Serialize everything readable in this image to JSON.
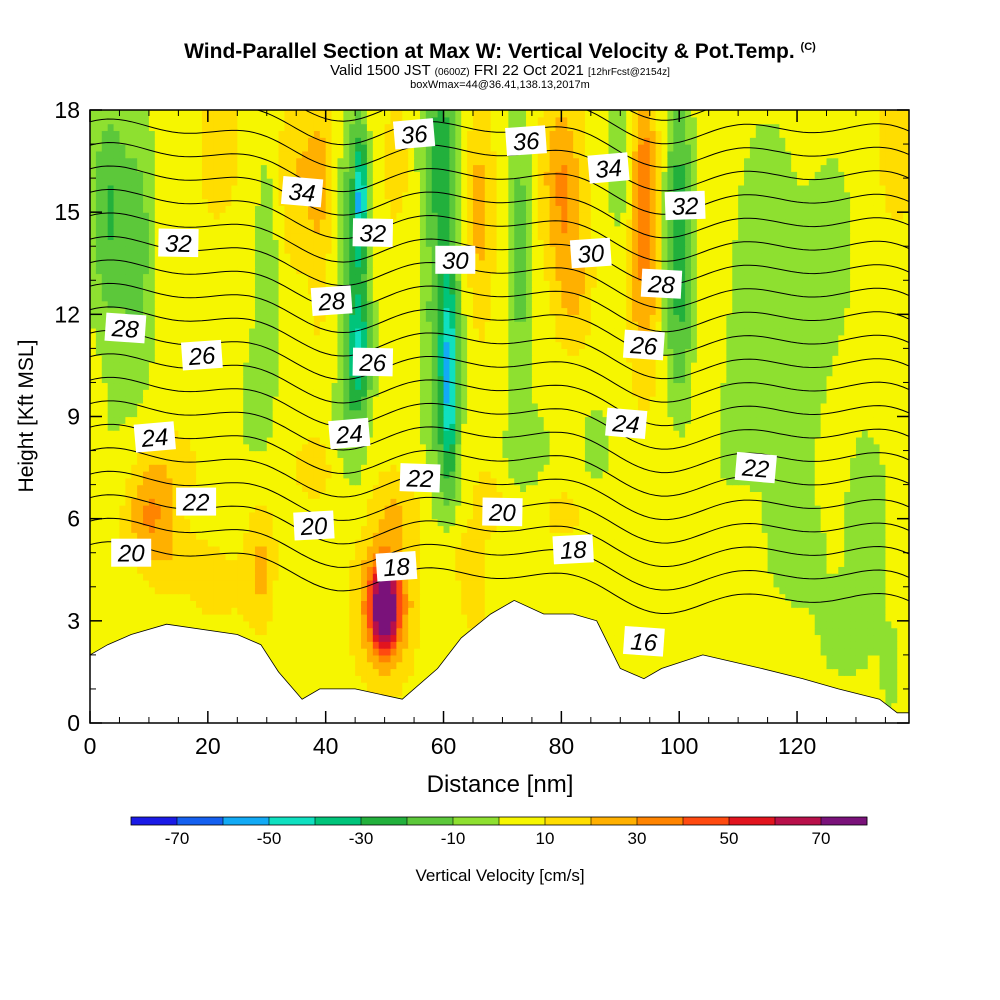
{
  "header": {
    "title": "Wind-Parallel Section at Max W: Vertical Velocity & Pot.Temp.",
    "copyright": "(C)",
    "valid_prefix": "Valid 1500 JST",
    "valid_utc": "(0600Z)",
    "valid_date": "FRI 22 Oct 2021",
    "forecast": "[12hrFcst@2154z]",
    "box_info": "boxWmax=44@36.41,138.13,2017m"
  },
  "chart_data": {
    "type": "heatmap",
    "xlabel": "Distance [nm]",
    "ylabel": "Height [Kft MSL]",
    "xlim": [
      0,
      139
    ],
    "ylim": [
      0,
      18
    ],
    "x_ticks": [
      0,
      20,
      40,
      60,
      80,
      100,
      120
    ],
    "y_ticks": [
      0,
      3,
      6,
      9,
      12,
      15,
      18
    ],
    "colorbar": {
      "label": "Vertical Velocity [cm/s]",
      "tick_labels": [
        "-70",
        "-50",
        "-30",
        "-10",
        "10",
        "30",
        "50",
        "70"
      ],
      "bins": [
        -80,
        -70,
        -60,
        -50,
        -40,
        -30,
        -20,
        -10,
        0,
        10,
        20,
        30,
        40,
        50,
        60,
        70,
        80
      ],
      "colors": [
        "#1a1ae6",
        "#1560f0",
        "#12aaf5",
        "#0fe0c0",
        "#00c47a",
        "#22b03c",
        "#5cc83a",
        "#8ee030",
        "#f6f600",
        "#ffdd00",
        "#ffb000",
        "#ff8400",
        "#ff4a10",
        "#e2141e",
        "#b8104a",
        "#7a127a"
      ]
    },
    "theta_contours": {
      "name": "Pot.Temp.",
      "labels": [
        {
          "value": "16",
          "x": 94,
          "y": 2.4
        },
        {
          "value": "18",
          "x": 52,
          "y": 4.6
        },
        {
          "value": "18",
          "x": 82,
          "y": 5.1
        },
        {
          "value": "20",
          "x": 7,
          "y": 5.0
        },
        {
          "value": "20",
          "x": 38,
          "y": 5.8
        },
        {
          "value": "20",
          "x": 70,
          "y": 6.2
        },
        {
          "value": "22",
          "x": 18,
          "y": 6.5
        },
        {
          "value": "22",
          "x": 56,
          "y": 7.2
        },
        {
          "value": "22",
          "x": 113,
          "y": 7.5
        },
        {
          "value": "24",
          "x": 11,
          "y": 8.4
        },
        {
          "value": "24",
          "x": 44,
          "y": 8.5
        },
        {
          "value": "24",
          "x": 91,
          "y": 8.8
        },
        {
          "value": "26",
          "x": 19,
          "y": 10.8
        },
        {
          "value": "26",
          "x": 48,
          "y": 10.6
        },
        {
          "value": "26",
          "x": 94,
          "y": 11.1
        },
        {
          "value": "28",
          "x": 6,
          "y": 11.6
        },
        {
          "value": "28",
          "x": 41,
          "y": 12.4
        },
        {
          "value": "28",
          "x": 97,
          "y": 12.9
        },
        {
          "value": "30",
          "x": 62,
          "y": 13.6
        },
        {
          "value": "30",
          "x": 85,
          "y": 13.8
        },
        {
          "value": "32",
          "x": 15,
          "y": 14.1
        },
        {
          "value": "32",
          "x": 48,
          "y": 14.4
        },
        {
          "value": "32",
          "x": 101,
          "y": 15.2
        },
        {
          "value": "34",
          "x": 36,
          "y": 15.6
        },
        {
          "value": "34",
          "x": 88,
          "y": 16.3
        },
        {
          "value": "36",
          "x": 55,
          "y": 17.3
        },
        {
          "value": "36",
          "x": 74,
          "y": 17.1
        }
      ]
    },
    "terrain_kft": [
      [
        0,
        2.0
      ],
      [
        3,
        2.3
      ],
      [
        7,
        2.6
      ],
      [
        13,
        2.9
      ],
      [
        25,
        2.6
      ],
      [
        29,
        2.3
      ],
      [
        32,
        1.5
      ],
      [
        36,
        0.7
      ],
      [
        39,
        1.0
      ],
      [
        45,
        1.0
      ],
      [
        53,
        0.7
      ],
      [
        59,
        1.6
      ],
      [
        63,
        2.5
      ],
      [
        68,
        3.2
      ],
      [
        72,
        3.6
      ],
      [
        77,
        3.2
      ],
      [
        82,
        3.2
      ],
      [
        86,
        3.0
      ],
      [
        90,
        1.6
      ],
      [
        94,
        1.3
      ],
      [
        97,
        1.6
      ],
      [
        104,
        2.0
      ],
      [
        114,
        1.6
      ],
      [
        121,
        1.3
      ],
      [
        127,
        1.0
      ],
      [
        134,
        0.7
      ],
      [
        137,
        0.3
      ],
      [
        139,
        0.3
      ]
    ],
    "w_field": [
      {
        "x": 3,
        "y": 15.0,
        "w": -25,
        "sx": 3,
        "sy": 3.5
      },
      {
        "x": 8,
        "y": 14.0,
        "w": -20,
        "sx": 3,
        "sy": 4
      },
      {
        "x": 4,
        "y": 8.0,
        "w": -5,
        "sx": 4,
        "sy": 2
      },
      {
        "x": 10,
        "y": 6.0,
        "w": 25,
        "sx": 4,
        "sy": 1.2
      },
      {
        "x": 12,
        "y": 7.5,
        "w": 12,
        "sx": 6,
        "sy": 1.2
      },
      {
        "x": 15,
        "y": 4.6,
        "w": 12,
        "sx": 5,
        "sy": 1
      },
      {
        "x": 20,
        "y": 12.0,
        "w": 5,
        "sx": 5,
        "sy": 3
      },
      {
        "x": 22,
        "y": 17.0,
        "w": 10,
        "sx": 4,
        "sy": 2
      },
      {
        "x": 16,
        "y": 3.0,
        "w": -5,
        "sx": 2,
        "sy": 1
      },
      {
        "x": 22,
        "y": 4.0,
        "w": 8,
        "sx": 5,
        "sy": 1.2
      },
      {
        "x": 28,
        "y": 9.5,
        "w": -8,
        "sx": 4,
        "sy": 2.5
      },
      {
        "x": 30,
        "y": 13.5,
        "w": -15,
        "sx": 1.8,
        "sy": 3
      },
      {
        "x": 29,
        "y": 4.6,
        "w": 18,
        "sx": 2.5,
        "sy": 1.8
      },
      {
        "x": 33,
        "y": 3.2,
        "w": -5,
        "sx": 2,
        "sy": 1.3
      },
      {
        "x": 35,
        "y": 16.0,
        "w": 15,
        "sx": 3,
        "sy": 2.5
      },
      {
        "x": 38,
        "y": 7.5,
        "w": 10,
        "sx": 4,
        "sy": 1
      },
      {
        "x": 39,
        "y": 16.0,
        "w": 20,
        "sx": 2.2,
        "sy": 2.2
      },
      {
        "x": 39,
        "y": 11.5,
        "w": 5,
        "sx": 2.5,
        "sy": 2
      },
      {
        "x": 45,
        "y": 14.0,
        "w": -30,
        "sx": 2.3,
        "sy": 4.5
      },
      {
        "x": 46,
        "y": 15.5,
        "w": -45,
        "sx": 0.8,
        "sy": 1.5
      },
      {
        "x": 46,
        "y": 11.0,
        "w": -28,
        "sx": 2.0,
        "sy": 1.5
      },
      {
        "x": 44,
        "y": 9.0,
        "w": -12,
        "sx": 3,
        "sy": 2
      },
      {
        "x": 50,
        "y": 3.3,
        "w": 55,
        "sx": 1.6,
        "sy": 0.9
      },
      {
        "x": 50,
        "y": 3.5,
        "w": 38,
        "sx": 3.2,
        "sy": 1.5
      },
      {
        "x": 50,
        "y": 3.5,
        "w": 22,
        "sx": 5,
        "sy": 2.2
      },
      {
        "x": 52,
        "y": 16.5,
        "w": 10,
        "sx": 2.5,
        "sy": 2
      },
      {
        "x": 52,
        "y": 6.5,
        "w": 12,
        "sx": 4,
        "sy": 1
      },
      {
        "x": 60,
        "y": 12.0,
        "w": -30,
        "sx": 3,
        "sy": 6
      },
      {
        "x": 61,
        "y": 10.0,
        "w": -40,
        "sx": 1.2,
        "sy": 2.5
      },
      {
        "x": 59,
        "y": 17.0,
        "w": -20,
        "sx": 3,
        "sy": 2
      },
      {
        "x": 66,
        "y": 15.0,
        "w": 20,
        "sx": 2.5,
        "sy": 3
      },
      {
        "x": 67,
        "y": 9.0,
        "w": 5,
        "sx": 3,
        "sy": 2
      },
      {
        "x": 62,
        "y": 5.0,
        "w": 10,
        "sx": 5,
        "sy": 1
      },
      {
        "x": 65,
        "y": 3.5,
        "w": 8,
        "sx": 3,
        "sy": 1
      },
      {
        "x": 68,
        "y": 6.5,
        "w": 8,
        "sx": 4,
        "sy": 1
      },
      {
        "x": 73,
        "y": 14.0,
        "w": -20,
        "sx": 2,
        "sy": 4.5
      },
      {
        "x": 74,
        "y": 8.0,
        "w": -10,
        "sx": 5,
        "sy": 1.5
      },
      {
        "x": 80,
        "y": 16.0,
        "w": 25,
        "sx": 3.5,
        "sy": 2.5
      },
      {
        "x": 82,
        "y": 13.0,
        "w": 18,
        "sx": 3,
        "sy": 2
      },
      {
        "x": 80,
        "y": 6.2,
        "w": 8,
        "sx": 5,
        "sy": 1
      },
      {
        "x": 86,
        "y": 8.0,
        "w": -10,
        "sx": 3,
        "sy": 1.5
      },
      {
        "x": 90,
        "y": 16.5,
        "w": -15,
        "sx": 2,
        "sy": 2
      },
      {
        "x": 94,
        "y": 16.0,
        "w": 30,
        "sx": 2.2,
        "sy": 3
      },
      {
        "x": 94,
        "y": 12.0,
        "w": 18,
        "sx": 2.5,
        "sy": 2.5
      },
      {
        "x": 92,
        "y": 6.0,
        "w": 5,
        "sx": 6,
        "sy": 1.5
      },
      {
        "x": 100,
        "y": 15.0,
        "w": -30,
        "sx": 2.2,
        "sy": 4
      },
      {
        "x": 100,
        "y": 11.0,
        "w": -12,
        "sx": 2.5,
        "sy": 2
      },
      {
        "x": 100,
        "y": 4.5,
        "w": -5,
        "sx": 3,
        "sy": 1.5
      },
      {
        "x": 105,
        "y": 10.0,
        "w": 10,
        "sx": 2.5,
        "sy": 2
      },
      {
        "x": 108,
        "y": 9.0,
        "w": -8,
        "sx": 5,
        "sy": 2.5
      },
      {
        "x": 115,
        "y": 13.0,
        "w": -12,
        "sx": 6,
        "sy": 5
      },
      {
        "x": 120,
        "y": 10.0,
        "w": -8,
        "sx": 5,
        "sy": 3
      },
      {
        "x": 120,
        "y": 5.0,
        "w": -8,
        "sx": 6,
        "sy": 2
      },
      {
        "x": 126,
        "y": 14.0,
        "w": -10,
        "sx": 4,
        "sy": 3
      },
      {
        "x": 132,
        "y": 6.0,
        "w": -10,
        "sx": 4,
        "sy": 3
      },
      {
        "x": 128,
        "y": 2.5,
        "w": -8,
        "sx": 5,
        "sy": 1.5
      },
      {
        "x": 136,
        "y": 1.5,
        "w": -8,
        "sx": 2,
        "sy": 1.5
      },
      {
        "x": 137,
        "y": 17.0,
        "w": 15,
        "sx": 3,
        "sy": 2
      },
      {
        "x": 137,
        "y": 12.0,
        "w": 5,
        "sx": 3,
        "sy": 2
      }
    ]
  }
}
